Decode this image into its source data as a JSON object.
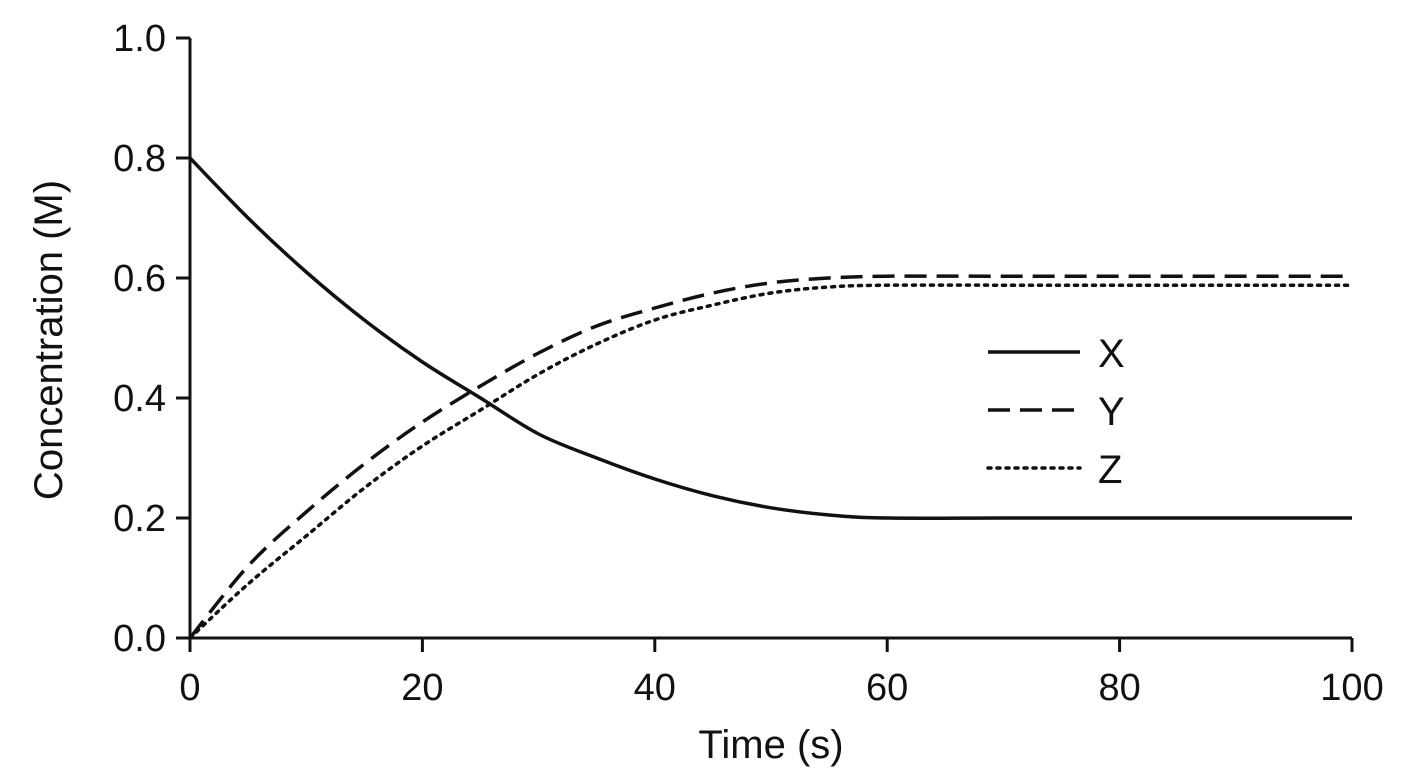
{
  "chart_data": {
    "type": "line",
    "title": "",
    "xlabel": "Time (s)",
    "ylabel": "Concentration (M)",
    "xlim": [
      0,
      100
    ],
    "ylim": [
      0,
      1.0
    ],
    "x_ticks": [
      "0",
      "20",
      "40",
      "60",
      "80",
      "100"
    ],
    "y_ticks": [
      "0.0",
      "0.2",
      "0.4",
      "0.6",
      "0.8",
      "1.0"
    ],
    "grid": false,
    "legend_position": "right-middle",
    "series": [
      {
        "name": "X",
        "line_style": "solid",
        "color": "#111111",
        "x": [
          0,
          5,
          10,
          15,
          20,
          25,
          30,
          35,
          40,
          45,
          50,
          55,
          60,
          70,
          80,
          90,
          100
        ],
        "y": [
          0.8,
          0.7,
          0.61,
          0.53,
          0.46,
          0.4,
          0.34,
          0.3,
          0.265,
          0.237,
          0.217,
          0.205,
          0.2,
          0.2,
          0.2,
          0.2,
          0.2
        ]
      },
      {
        "name": "Y",
        "line_style": "dashed",
        "color": "#111111",
        "x": [
          0,
          5,
          10,
          15,
          20,
          25,
          30,
          35,
          40,
          45,
          50,
          55,
          60,
          70,
          80,
          90,
          100
        ],
        "y": [
          0.0,
          0.12,
          0.21,
          0.29,
          0.36,
          0.42,
          0.475,
          0.52,
          0.55,
          0.575,
          0.592,
          0.6,
          0.603,
          0.603,
          0.603,
          0.603,
          0.603
        ]
      },
      {
        "name": "Z",
        "line_style": "dotted",
        "color": "#111111",
        "x": [
          0,
          5,
          10,
          15,
          20,
          25,
          30,
          35,
          40,
          45,
          50,
          55,
          60,
          70,
          80,
          90,
          100
        ],
        "y": [
          0.0,
          0.09,
          0.17,
          0.25,
          0.32,
          0.38,
          0.44,
          0.49,
          0.53,
          0.555,
          0.575,
          0.585,
          0.588,
          0.588,
          0.588,
          0.588,
          0.588
        ]
      }
    ]
  }
}
